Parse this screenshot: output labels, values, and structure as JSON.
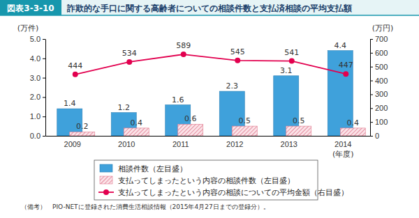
{
  "chart_data": {
    "type": "bar",
    "title_label": "図表3-3-10",
    "title": "詐欺的な手口に関する高齢者についての相談件数と支払済相談の平均支払額",
    "ylabel": "(万件)",
    "y2label": "(万円)",
    "xlabel": "(年度)",
    "categories": [
      "2009",
      "2010",
      "2011",
      "2012",
      "2013",
      "2014"
    ],
    "series": [
      {
        "name": "相談件数（左目盛）",
        "type": "bar",
        "color": "#3fa1db",
        "values": [
          1.4,
          1.2,
          1.6,
          2.3,
          3.1,
          4.4
        ]
      },
      {
        "name": "支払ってしまったという内容の相談件数（左目盛）",
        "type": "bar",
        "color": "#e07a8f",
        "values": [
          0.2,
          0.4,
          0.6,
          0.5,
          0.5,
          0.4
        ]
      },
      {
        "name": "支払ってしまったという内容の相談についての平均金額（右目盛）",
        "type": "line",
        "axis": "y2",
        "color": "#e2004f",
        "marker": "circle",
        "line_style": "solid",
        "values": [
          444,
          534,
          589,
          545,
          541,
          447
        ]
      }
    ],
    "ylim": [
      0,
      5
    ],
    "yticks": [
      {
        "value": 0,
        "label": "0.0"
      },
      {
        "value": 1,
        "label": "1.0"
      },
      {
        "value": 2,
        "label": "2.0"
      },
      {
        "value": 3,
        "label": "3.0"
      },
      {
        "value": 4,
        "label": "4.0"
      },
      {
        "value": 5,
        "label": "5.0"
      }
    ],
    "y2lim": [
      0,
      700
    ],
    "y2ticks": [
      0,
      100,
      200,
      300,
      400,
      500,
      600,
      700
    ],
    "data_labels": true,
    "grid": false,
    "legend": "bottom",
    "source": "（備考）　PIO-NETに登録された消費生活相談情報（2015年4月27日までの登録分）。"
  }
}
